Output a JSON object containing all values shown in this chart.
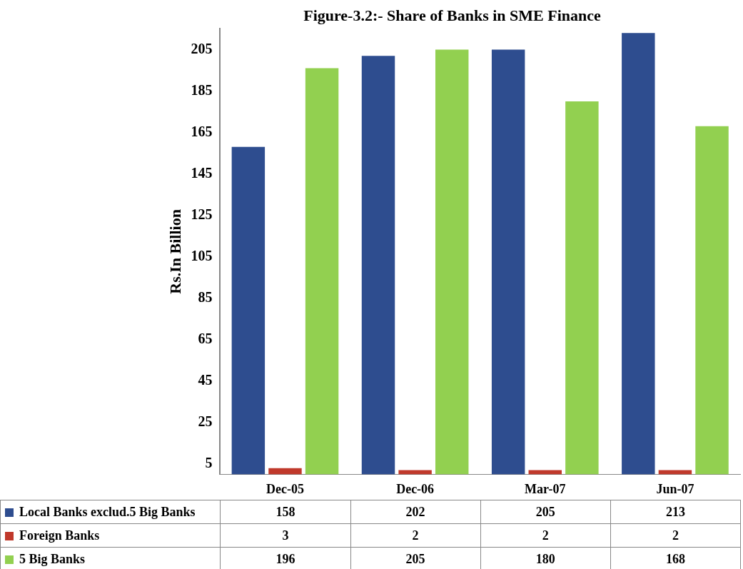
{
  "chart_data": {
    "type": "bar",
    "title": "Figure-3.2:- Share of Banks in SME Finance",
    "ylabel": "Rs.In Billion",
    "categories": [
      "Dec-05",
      "Dec-06",
      "Mar-07",
      "Jun-07"
    ],
    "series": [
      {
        "name": "Local Banks exclud.5 Big Banks",
        "color": "#2e4d8f",
        "values": [
          158,
          202,
          205,
          213
        ]
      },
      {
        "name": "Foreign Banks",
        "color": "#c0392b",
        "values": [
          3,
          2,
          2,
          2
        ]
      },
      {
        "name": "5 Big Banks",
        "color": "#92d050",
        "values": [
          196,
          205,
          180,
          168
        ]
      }
    ],
    "ylim": [
      0,
      215
    ],
    "yticks": [
      5,
      25,
      45,
      65,
      85,
      105,
      125,
      145,
      165,
      185,
      205
    ],
    "grid": false,
    "legend": "bottom",
    "data_labels": true
  }
}
